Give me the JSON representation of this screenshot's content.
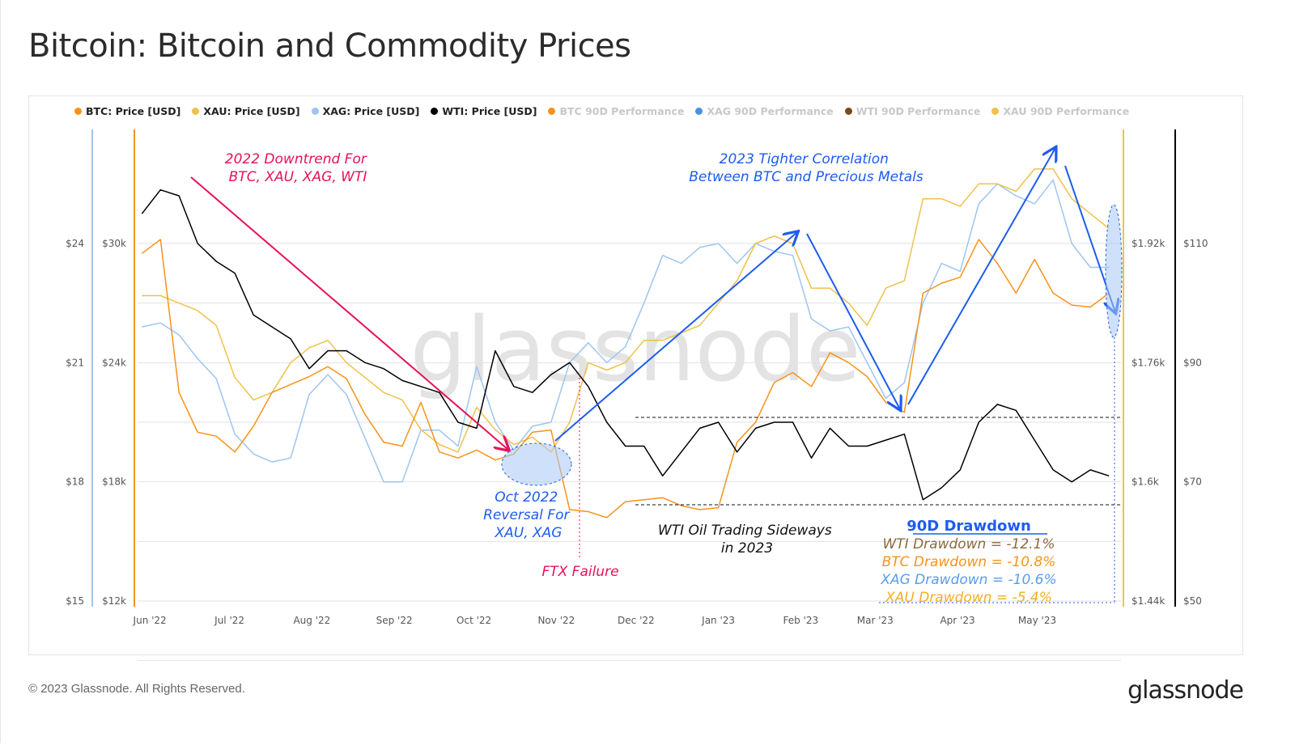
{
  "title": "Bitcoin: Bitcoin and Commodity Prices",
  "legend": [
    {
      "label": "BTC: Price [USD]",
      "color": "#f7931a",
      "active": true
    },
    {
      "label": "XAU: Price [USD]",
      "color": "#f0c14b",
      "active": true
    },
    {
      "label": "XAG: Price [USD]",
      "color": "#9ec5f0",
      "active": true
    },
    {
      "label": "WTI: Price [USD]",
      "color": "#000000",
      "active": true
    },
    {
      "label": "BTC 90D Performance",
      "color": "#f7931a",
      "active": false
    },
    {
      "label": "XAG 90D Performance",
      "color": "#4a90e2",
      "active": false
    },
    {
      "label": "WTI 90D Performance",
      "color": "#7a4a1a",
      "active": false
    },
    {
      "label": "XAU 90D Performance",
      "color": "#f0c14b",
      "active": false
    }
  ],
  "watermark": "glassnode",
  "footer": {
    "copyright": "© 2023 Glassnode. All Rights Reserved.",
    "logo": "glassnode"
  },
  "annotations": {
    "downtrend": [
      "2022 Downtrend For",
      "BTC, XAU, XAG, WTI"
    ],
    "correlation": [
      "2023 Tighter Correlation",
      "Between BTC and Precious Metals"
    ],
    "oct_reversal": [
      "Oct 2022",
      "Reversal For",
      "XAU, XAG"
    ],
    "ftx": "FTX Failure",
    "wti_sideways": [
      "WTI Oil Trading Sideways",
      "in 2023"
    ],
    "drawdown_title": "90D Drawdown",
    "drawdowns": [
      {
        "text": "WTI Drawdown = -12.1%",
        "color": "#8b6a3e"
      },
      {
        "text": "BTC Drawdown = -10.8%",
        "color": "#f7931a"
      },
      {
        "text": "XAG Drawdown = -10.6%",
        "color": "#5a9cf0"
      },
      {
        "text": "XAU Drawdown = -5.4%",
        "color": "#f0b020"
      }
    ]
  },
  "chart_data": {
    "type": "line",
    "title": "Bitcoin: Bitcoin and Commodity Prices",
    "x_tick_labels": [
      "Jun '22",
      "Jul '22",
      "Aug '22",
      "Sep '22",
      "Oct '22",
      "Nov '22",
      "Dec '22",
      "Jan '23",
      "Feb '23",
      "Mar '23",
      "Apr '23",
      "May '23"
    ],
    "x_ticks": [
      "2022-06-01",
      "2022-07-01",
      "2022-08-01",
      "2022-09-01",
      "2022-10-01",
      "2022-11-01",
      "2022-12-01",
      "2023-01-01",
      "2023-02-01",
      "2023-03-01",
      "2023-04-01",
      "2023-05-01"
    ],
    "xlim": [
      "2022-05-28",
      "2023-05-31"
    ],
    "grid": true,
    "legend_position": "top",
    "axes": {
      "XAG": {
        "ticks": [
          15,
          18,
          21,
          24
        ],
        "labels": [
          "$15",
          "$18",
          "$21",
          "$24"
        ],
        "ylim": [
          15,
          24
        ],
        "side": "left-outer",
        "color": "#9ec5f0"
      },
      "BTC": {
        "ticks": [
          12,
          18,
          24,
          30
        ],
        "labels": [
          "$12k",
          "$18k",
          "$24k",
          "$30k"
        ],
        "ylim": [
          12,
          30
        ],
        "side": "left",
        "color": "#f7931a"
      },
      "XAU": {
        "ticks": [
          1.44,
          1.6,
          1.76,
          1.92
        ],
        "labels": [
          "$1.44k",
          "$1.6k",
          "$1.76k",
          "$1.92k"
        ],
        "ylim": [
          1.44,
          1.92
        ],
        "side": "right",
        "color": "#f0c14b"
      },
      "WTI": {
        "ticks": [
          50,
          70,
          90,
          110
        ],
        "labels": [
          "$50",
          "$70",
          "$90",
          "$110"
        ],
        "ylim": [
          50,
          110
        ],
        "side": "right-outer",
        "color": "#000000"
      }
    },
    "dates": [
      "2022-05-29",
      "2022-06-05",
      "2022-06-12",
      "2022-06-19",
      "2022-06-26",
      "2022-07-03",
      "2022-07-10",
      "2022-07-17",
      "2022-07-24",
      "2022-07-31",
      "2022-08-07",
      "2022-08-14",
      "2022-08-21",
      "2022-08-28",
      "2022-09-04",
      "2022-09-11",
      "2022-09-18",
      "2022-09-25",
      "2022-10-02",
      "2022-10-09",
      "2022-10-16",
      "2022-10-23",
      "2022-10-30",
      "2022-11-06",
      "2022-11-13",
      "2022-11-20",
      "2022-11-27",
      "2022-12-04",
      "2022-12-11",
      "2022-12-18",
      "2022-12-25",
      "2023-01-01",
      "2023-01-08",
      "2023-01-15",
      "2023-01-22",
      "2023-01-29",
      "2023-02-05",
      "2023-02-12",
      "2023-02-19",
      "2023-02-26",
      "2023-03-05",
      "2023-03-12",
      "2023-03-19",
      "2023-03-26",
      "2023-04-02",
      "2023-04-09",
      "2023-04-16",
      "2023-04-23",
      "2023-04-30",
      "2023-05-07",
      "2023-05-14",
      "2023-05-21",
      "2023-05-28"
    ],
    "series": [
      {
        "name": "XAG: Price [USD]",
        "axis": "XAG",
        "color": "#9ec5f0",
        "values": [
          21.9,
          22.0,
          21.7,
          21.1,
          20.6,
          19.2,
          18.7,
          18.5,
          18.6,
          20.2,
          20.7,
          20.2,
          19.1,
          18.0,
          18.0,
          19.3,
          19.3,
          18.9,
          20.9,
          19.5,
          18.8,
          19.4,
          19.5,
          21.0,
          21.5,
          21.0,
          21.4,
          22.5,
          23.7,
          23.5,
          23.9,
          24.0,
          23.5,
          24.0,
          23.8,
          23.7,
          22.1,
          21.8,
          21.9,
          21.0,
          20.1,
          20.5,
          22.5,
          23.5,
          23.3,
          25.0,
          25.5,
          25.2,
          25.0,
          25.6,
          24.0,
          23.4,
          23.4
        ]
      },
      {
        "name": "XAU: Price [USD]",
        "axis": "XAU",
        "color": "#f0c14b",
        "values": [
          1.85,
          1.85,
          1.84,
          1.83,
          1.81,
          1.74,
          1.71,
          1.72,
          1.76,
          1.78,
          1.79,
          1.76,
          1.74,
          1.72,
          1.71,
          1.67,
          1.65,
          1.64,
          1.7,
          1.67,
          1.65,
          1.66,
          1.64,
          1.68,
          1.76,
          1.75,
          1.76,
          1.79,
          1.79,
          1.8,
          1.81,
          1.84,
          1.87,
          1.92,
          1.93,
          1.92,
          1.86,
          1.86,
          1.84,
          1.81,
          1.86,
          1.87,
          1.98,
          1.98,
          1.97,
          2.0,
          2.0,
          1.99,
          2.02,
          2.02,
          1.98,
          1.96,
          1.94
        ]
      },
      {
        "name": "BTC: Price [USD]",
        "axis": "BTC",
        "color": "#f7931a",
        "values": [
          29.5,
          30.2,
          22.5,
          20.5,
          20.3,
          19.5,
          20.8,
          22.5,
          22.9,
          23.3,
          23.8,
          23.2,
          21.4,
          20.0,
          19.8,
          22.0,
          19.5,
          19.2,
          19.6,
          19.1,
          19.4,
          20.5,
          20.6,
          16.6,
          16.5,
          16.2,
          17.0,
          17.1,
          17.2,
          16.8,
          16.6,
          16.7,
          20.0,
          21.0,
          23.0,
          23.5,
          22.8,
          24.5,
          24.0,
          23.3,
          22.0,
          21.5,
          27.5,
          28.0,
          28.3,
          30.2,
          29.0,
          27.5,
          29.2,
          27.5,
          26.9,
          26.8,
          27.5
        ]
      },
      {
        "name": "WTI: Price [USD]",
        "axis": "WTI",
        "color": "#000000",
        "values": [
          115,
          119,
          118,
          110,
          107,
          105,
          98,
          96,
          94,
          89,
          92,
          92,
          90,
          89,
          87,
          86,
          85,
          80,
          79,
          92,
          86,
          85,
          88,
          90,
          86,
          80,
          76,
          76,
          71,
          75,
          79,
          80,
          75,
          79,
          80,
          80,
          74,
          79,
          76,
          76,
          77,
          78,
          67,
          69,
          72,
          80,
          83,
          82,
          77,
          72,
          70,
          72,
          71
        ]
      }
    ]
  }
}
